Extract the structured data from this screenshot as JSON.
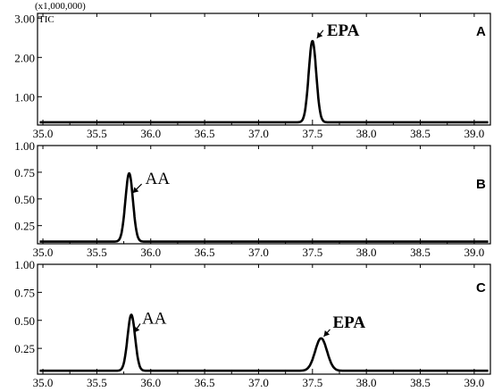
{
  "figure": {
    "scale_label": "(x1,000,000)",
    "tic_label": "TIC"
  },
  "chart_data": [
    {
      "type": "line",
      "panel": "A",
      "x_ticks": [
        "35.0",
        "35.5",
        "36.0",
        "36.5",
        "37.0",
        "37.5",
        "38.0",
        "38.5",
        "39.0"
      ],
      "y_ticks": [
        "3.00",
        "2.00",
        "1.00"
      ],
      "xlim": [
        34.95,
        39.15
      ],
      "ylim": [
        0.28,
        3.12
      ],
      "baseline": 0.35,
      "peaks": [
        {
          "name": "EPA",
          "x": 37.5,
          "y": 2.42,
          "width": 0.035
        }
      ]
    },
    {
      "type": "line",
      "panel": "B",
      "x_ticks": [
        "35.0",
        "35.5",
        "36.0",
        "36.5",
        "37.0",
        "37.5",
        "38.0",
        "38.5",
        "39.0"
      ],
      "y_ticks": [
        "1.00",
        "0.75",
        "0.50",
        "0.25"
      ],
      "xlim": [
        34.95,
        39.15
      ],
      "ylim": [
        0.08,
        1.0
      ],
      "baseline": 0.1,
      "peaks": [
        {
          "name": "AA",
          "x": 35.8,
          "y": 0.74,
          "width": 0.035
        }
      ]
    },
    {
      "type": "line",
      "panel": "C",
      "x_ticks": [
        "35.0",
        "35.5",
        "36.0",
        "36.5",
        "37.0",
        "37.5",
        "38.0",
        "38.5",
        "39.0"
      ],
      "y_ticks": [
        "1.00",
        "0.75",
        "0.50",
        "0.25"
      ],
      "xlim": [
        34.95,
        39.15
      ],
      "ylim": [
        0.02,
        1.0
      ],
      "baseline": 0.05,
      "peaks": [
        {
          "name": "AA",
          "x": 35.82,
          "y": 0.55,
          "width": 0.035
        },
        {
          "name": "EPA",
          "x": 37.58,
          "y": 0.34,
          "width": 0.055
        }
      ]
    }
  ]
}
